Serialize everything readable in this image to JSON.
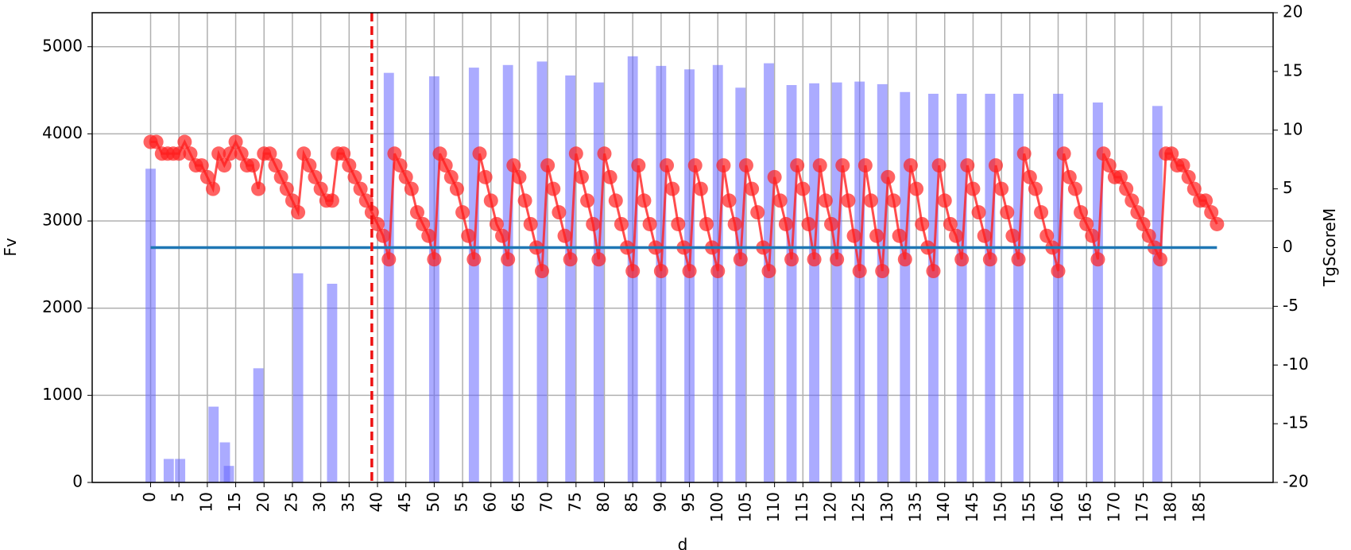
{
  "chart_data": {
    "type": "bar-line",
    "xlabel": "d",
    "ylabel": "Fv",
    "y2label": "TgScoreM",
    "xlim": [
      -10.3,
      197.9
    ],
    "ylim": [
      0,
      5390
    ],
    "y2lim": [
      -20,
      20
    ],
    "xticks": [
      0,
      5,
      10,
      15,
      20,
      25,
      30,
      35,
      40,
      45,
      50,
      55,
      60,
      65,
      70,
      75,
      80,
      85,
      90,
      95,
      100,
      105,
      110,
      115,
      120,
      125,
      130,
      135,
      140,
      145,
      150,
      155,
      160,
      165,
      170,
      175,
      180,
      185
    ],
    "yticks": [
      0,
      1000,
      2000,
      3000,
      4000,
      5000
    ],
    "y2ticks": [
      -20,
      -15,
      -10,
      -5,
      0,
      5,
      10,
      15,
      20
    ],
    "grid": true,
    "bar_width": 1.8,
    "series": [
      {
        "type": "bar",
        "color": "#6666ff",
        "x": [
          0,
          3.2,
          5.2,
          11.1,
          13.1,
          13.8,
          19,
          26,
          32,
          42,
          50,
          57,
          63,
          69,
          74,
          79,
          85,
          90,
          95,
          100,
          104,
          109,
          113,
          117,
          121,
          125,
          129,
          133,
          138,
          143,
          148,
          153,
          160,
          167,
          177.5
        ],
        "values": [
          3600,
          270,
          270,
          870,
          460,
          190,
          1310,
          2400,
          2280,
          4700,
          4660,
          4760,
          4790,
          4830,
          4670,
          4590,
          4890,
          4780,
          4740,
          4790,
          4530,
          4810,
          4560,
          4580,
          4590,
          4600,
          4570,
          4480,
          4460,
          4460,
          4460,
          4460,
          4460,
          4360,
          4320
        ]
      },
      {
        "type": "line",
        "axis": "y2",
        "color": "#ff2020",
        "x": [
          0,
          1,
          2,
          3,
          4,
          5,
          6,
          7,
          8,
          9,
          10,
          11,
          12,
          13,
          14,
          15,
          16,
          17,
          18,
          19,
          20,
          21,
          22,
          23,
          24,
          25,
          26,
          27,
          28,
          29,
          30,
          31,
          32,
          33,
          34,
          35,
          36,
          37,
          38,
          39,
          40,
          41,
          42,
          43,
          44,
          45,
          46,
          47,
          48,
          49,
          50,
          51,
          52,
          53,
          54,
          55,
          56,
          57,
          58,
          59,
          60,
          61,
          62,
          63,
          64,
          65,
          66,
          67,
          68,
          69,
          70,
          71,
          72,
          73,
          74,
          75,
          76,
          77,
          78,
          79,
          80,
          81,
          82,
          83,
          84,
          85,
          86,
          87,
          88,
          89,
          90,
          91,
          92,
          93,
          94,
          95,
          96,
          97,
          98,
          99,
          100,
          101,
          102,
          103,
          104,
          105,
          106,
          107,
          108,
          109,
          110,
          111,
          112,
          113,
          114,
          115,
          116,
          117,
          118,
          119,
          120,
          121,
          122,
          123,
          124,
          125,
          126,
          127,
          128,
          129,
          130,
          131,
          132,
          133,
          134,
          135,
          136,
          137,
          138,
          139,
          140,
          141,
          142,
          143,
          144,
          145,
          146,
          147,
          148,
          149,
          150,
          151,
          152,
          153,
          154,
          155,
          156,
          157,
          158,
          159,
          160,
          161,
          162,
          163,
          164,
          165,
          166,
          167,
          168,
          169,
          170,
          171,
          172,
          173,
          174,
          175,
          176,
          177,
          178,
          179,
          180,
          181,
          182,
          183,
          184,
          185,
          186,
          187,
          188
        ],
        "values": [
          9,
          9,
          8,
          8,
          8,
          8,
          9,
          8,
          7,
          7,
          6,
          5,
          8,
          7,
          8,
          9,
          8,
          7,
          7,
          5,
          8,
          8,
          7,
          6,
          5,
          4,
          3,
          8,
          7,
          6,
          5,
          4,
          4,
          8,
          8,
          7,
          6,
          5,
          4,
          3,
          2,
          1,
          -1,
          8,
          7,
          6,
          5,
          3,
          2,
          1,
          -1,
          8,
          7,
          6,
          5,
          3,
          1,
          -1,
          8,
          6,
          4,
          2,
          1,
          -1,
          7,
          6,
          4,
          2,
          0,
          -2,
          7,
          5,
          3,
          1,
          -1,
          8,
          6,
          4,
          2,
          -1,
          8,
          6,
          4,
          2,
          0,
          -2,
          7,
          4,
          2,
          0,
          -2,
          7,
          5,
          2,
          0,
          -2,
          7,
          5,
          2,
          0,
          -2,
          7,
          4,
          2,
          -1,
          7,
          5,
          3,
          0,
          -2,
          6,
          4,
          2,
          -1,
          7,
          5,
          2,
          -1,
          7,
          4,
          2,
          -1,
          7,
          4,
          1,
          -2,
          7,
          4,
          1,
          -2,
          6,
          4,
          1,
          -1,
          7,
          5,
          2,
          0,
          -2,
          7,
          4,
          2,
          1,
          -1,
          7,
          5,
          3,
          1,
          -1,
          7,
          5,
          3,
          1,
          -1,
          8,
          6,
          5,
          3,
          1,
          0,
          -2,
          8,
          6,
          5,
          3,
          2,
          1,
          -1,
          8,
          7,
          6,
          6,
          5,
          4,
          3,
          2,
          1,
          0,
          -1,
          8,
          8,
          7,
          7,
          6,
          5,
          4,
          4,
          3,
          2
        ]
      }
    ],
    "hline": {
      "axis": "y2",
      "y": 0,
      "xmin": 0,
      "xmax": 188,
      "color": "#1f77b4"
    },
    "vline": {
      "x": 39,
      "color": "#ee1111"
    }
  }
}
